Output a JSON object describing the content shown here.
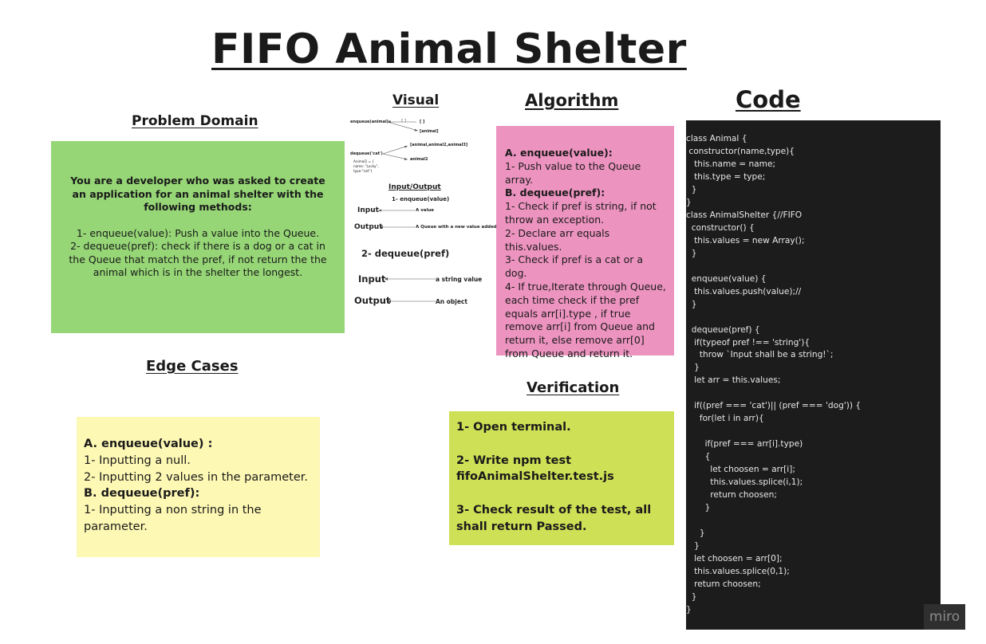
{
  "title": "FIFO Animal Shelter",
  "headings": {
    "problem_domain": "Problem Domain",
    "visual": "Visual",
    "algorithm": "Algorithm",
    "code": "Code",
    "edge_cases": "Edge Cases",
    "verification": "Verification"
  },
  "problem": {
    "intro": "You are a developer who was asked to create an application for an animal shelter with  the following methods:",
    "lines": [
      "1- enqueue(value):  Push a value into the Queue.",
      "2- dequeue(pref):  check if there is a dog or a cat in the Queue that match the pref, if not return the the animal which is in the shelter the longest."
    ]
  },
  "visual": {
    "enqueue_label": "enqueue(animal):",
    "box_label": "[ ]",
    "arrow_tag": "[ ]",
    "animal_label": "[animal]",
    "dequeue_label": "dequeue('cat')",
    "sample_line1": "Animal2 = {",
    "sample_line2": "name: \"Lucky\",",
    "sample_line3": "type:\"cat\"}",
    "queue_label": "[animal,animal2,animal3]",
    "result_label": "animal2",
    "io_heading": "Input/Output",
    "io_item1": "1- enqueue(value)",
    "input1": "Input",
    "input1_val": "A value",
    "output1": "Output",
    "output1_val": "A Queue with a new value added.",
    "io_item2": "2- dequeue(pref)",
    "input2": "Input",
    "input2_val": "a string value",
    "output2": "Output",
    "output2_val": "An object"
  },
  "algorithm": {
    "a_head": "A. enqueue(value):",
    "a1": "1- Push value to the Queue array.",
    "b_head": "B. dequeue(pref):",
    "b1": "1- Check if pref is string, if not throw an exception.",
    "b2": "2- Declare arr equals this.values.",
    "b3": "3- Check if pref is a cat or a dog.",
    "b4": "4- If true,Iterate through Queue, each time check if the pref equals arr[i].type , if true remove arr[i] from Queue and return it, else remove arr[0] from Queue and return it."
  },
  "edge": {
    "a_head": "A. enqueue(value) :",
    "a1": "1- Inputting a null.",
    "a2": "2- Inputting 2 values in the parameter.",
    "b_head": "B. dequeue(pref):",
    "b1": "1- Inputting a non string in the parameter."
  },
  "verification": {
    "s1": "1- Open terminal.",
    "s2": "2- Write npm test fifoAnimalShelter.test.js",
    "s3": "3- Check result of the test, all shall return Passed."
  },
  "code_lines": [
    "class Animal {",
    " constructor(name,type){",
    "   this.name = name;",
    "   this.type = type;",
    "  }",
    "}",
    "class AnimalShelter {//FIFO",
    "  constructor() {",
    "   this.values = new Array();",
    "  }",
    "",
    "  enqueue(value) {",
    "   this.values.push(value);//",
    "  }",
    "",
    "  dequeue(pref) {",
    "   if(typeof pref !== 'string'){",
    "     throw `Input shall be a string!`;",
    "   }",
    "   let arr = this.values;",
    "",
    "   if((pref === 'cat')|| (pref === 'dog')) {",
    "     for(let i in arr){",
    "",
    "       if(pref === arr[i].type)",
    "       {",
    "         let choosen = arr[i];",
    "         this.values.splice(i,1);",
    "         return choosen;",
    "       }",
    "",
    "     }",
    "   }",
    "   let choosen = arr[0];",
    "   this.values.splice(0,1);",
    "   return choosen;",
    "  }",
    "}"
  ],
  "watermark": "miro",
  "colors": {
    "problem_note": "#96d676",
    "algorithm_note": "#ec93bf",
    "edge_note": "#fdf8b3",
    "verification_note": "#cee055",
    "code_panel": "#1c1c1c"
  }
}
